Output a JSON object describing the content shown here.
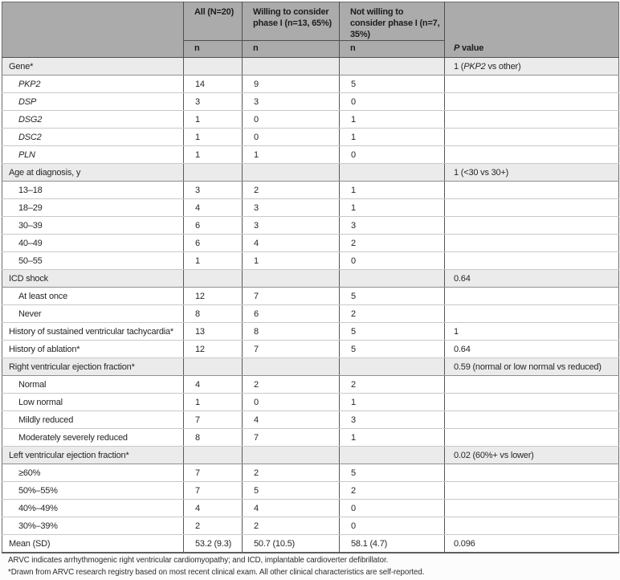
{
  "table": {
    "columns": {
      "label": "",
      "all": "All (N=20)",
      "willing": "Willing to consider phase I (n=13, 65%)",
      "not_willing": "Not willing to consider phase I (n=7, 35%)",
      "n_label": "n",
      "p_value": [
        {
          "t": "P",
          "i": true
        },
        {
          "t": " value"
        }
      ]
    },
    "rows": [
      {
        "label": "Gene*",
        "section": true,
        "values": [
          "",
          "",
          ""
        ],
        "p": [
          {
            "t": "1 ("
          },
          {
            "t": "PKP2",
            "i": true
          },
          {
            "t": " vs other)"
          }
        ]
      },
      {
        "label": "PKP2",
        "italic": true,
        "indent": true,
        "values": [
          "14",
          "9",
          "5"
        ],
        "p": ""
      },
      {
        "label": "DSP",
        "italic": true,
        "indent": true,
        "values": [
          "3",
          "3",
          "0"
        ],
        "p": ""
      },
      {
        "label": "DSG2",
        "italic": true,
        "indent": true,
        "values": [
          "1",
          "0",
          "1"
        ],
        "p": ""
      },
      {
        "label": "DSC2",
        "italic": true,
        "indent": true,
        "values": [
          "1",
          "0",
          "1"
        ],
        "p": ""
      },
      {
        "label": "PLN",
        "italic": true,
        "indent": true,
        "values": [
          "1",
          "1",
          "0"
        ],
        "p": ""
      },
      {
        "label": "Age at diagnosis, y",
        "section": true,
        "values": [
          "",
          "",
          ""
        ],
        "p": "1 (<30 vs 30+)"
      },
      {
        "label": "13–18",
        "indent": true,
        "values": [
          "3",
          "2",
          "1"
        ],
        "p": ""
      },
      {
        "label": "18–29",
        "indent": true,
        "values": [
          "4",
          "3",
          "1"
        ],
        "p": ""
      },
      {
        "label": "30–39",
        "indent": true,
        "values": [
          "6",
          "3",
          "3"
        ],
        "p": ""
      },
      {
        "label": "40–49",
        "indent": true,
        "values": [
          "6",
          "4",
          "2"
        ],
        "p": ""
      },
      {
        "label": "50–55",
        "indent": true,
        "values": [
          "1",
          "1",
          "0"
        ],
        "p": ""
      },
      {
        "label": "ICD shock",
        "section": true,
        "values": [
          "",
          "",
          ""
        ],
        "p": "0.64"
      },
      {
        "label": "At least once",
        "indent": true,
        "values": [
          "12",
          "7",
          "5"
        ],
        "p": ""
      },
      {
        "label": "Never",
        "indent": true,
        "values": [
          "8",
          "6",
          "2"
        ],
        "p": ""
      },
      {
        "label": "History of sustained ventricular tachycardia*",
        "values": [
          "13",
          "8",
          "5"
        ],
        "p": "1"
      },
      {
        "label": "History of ablation*",
        "values": [
          "12",
          "7",
          "5"
        ],
        "p": "0.64"
      },
      {
        "label": "Right ventricular ejection fraction*",
        "section": true,
        "values": [
          "",
          "",
          ""
        ],
        "p": "0.59 (normal or low normal vs reduced)"
      },
      {
        "label": "Normal",
        "indent": true,
        "values": [
          "4",
          "2",
          "2"
        ],
        "p": ""
      },
      {
        "label": "Low normal",
        "indent": true,
        "values": [
          "1",
          "0",
          "1"
        ],
        "p": ""
      },
      {
        "label": "Mildly reduced",
        "indent": true,
        "values": [
          "7",
          "4",
          "3"
        ],
        "p": ""
      },
      {
        "label": "Moderately severely reduced",
        "indent": true,
        "values": [
          "8",
          "7",
          "1"
        ],
        "p": ""
      },
      {
        "label": "Left ventricular ejection fraction*",
        "section": true,
        "values": [
          "",
          "",
          ""
        ],
        "p": "0.02 (60%+ vs lower)"
      },
      {
        "label": "≥60%",
        "indent": true,
        "values": [
          "7",
          "2",
          "5"
        ],
        "p": ""
      },
      {
        "label": "50%–55%",
        "indent": true,
        "values": [
          "7",
          "5",
          "2"
        ],
        "p": ""
      },
      {
        "label": "40%–49%",
        "indent": true,
        "values": [
          "4",
          "4",
          "0"
        ],
        "p": ""
      },
      {
        "label": "30%–39%",
        "indent": true,
        "values": [
          "2",
          "2",
          "0"
        ],
        "p": ""
      },
      {
        "label": "Mean (SD)",
        "summary": true,
        "values": [
          "53.2 (9.3)",
          "50.7 (10.5)",
          "58.1 (4.7)"
        ],
        "p": "0.096"
      }
    ]
  },
  "footnotes": [
    "ARVC indicates arrhythmogenic right ventricular cardiomyopathy; and ICD, implantable cardioverter defibrillator.",
    "*Drawn from ARVC research registry based on most recent clinical exam. All other clinical characteristics are self-reported."
  ],
  "colors": {
    "header_bg": "#ababab",
    "section_row_bg": "#ebebeb",
    "row_bg": "#ffffff",
    "dark_border": "#575757",
    "light_border": "#c9c9c9",
    "section_border": "#8f8f8f",
    "text": "#262626"
  }
}
